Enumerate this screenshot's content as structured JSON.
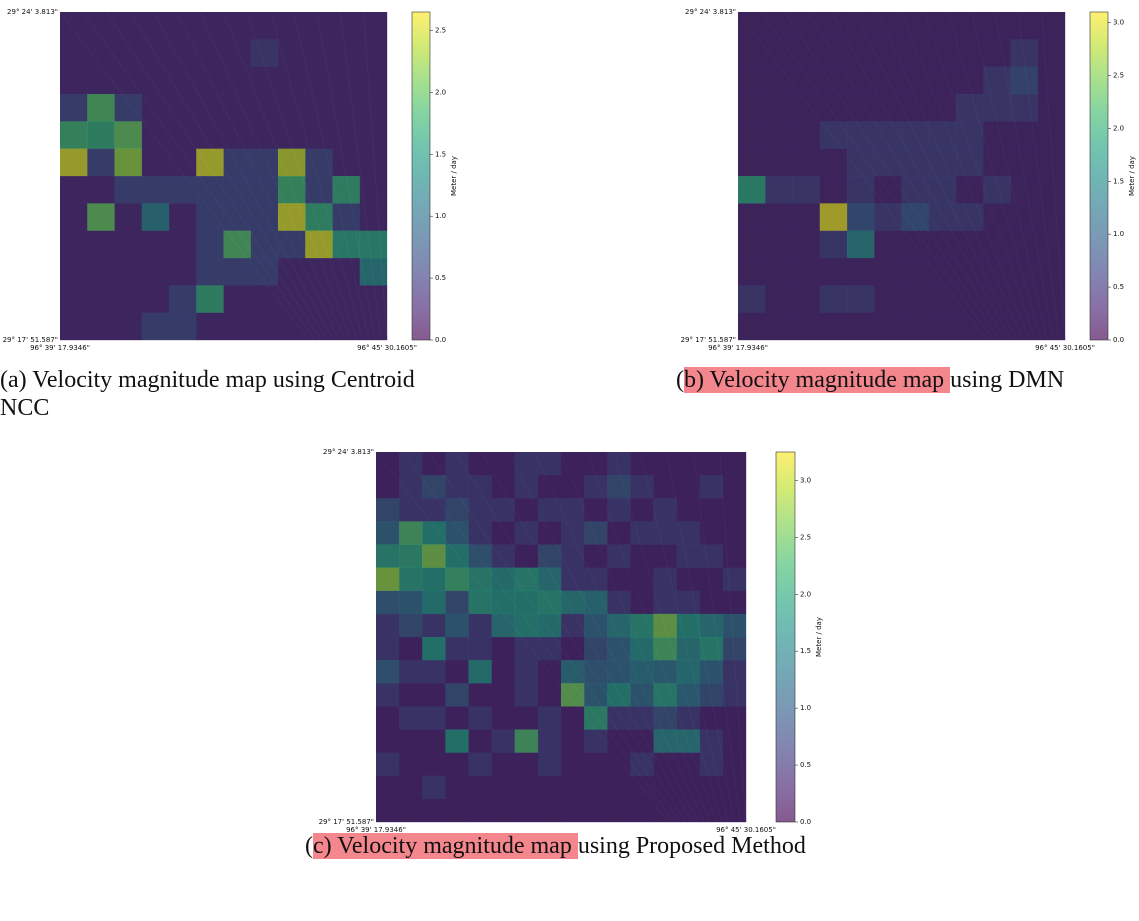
{
  "figures": [
    {
      "corner_labels": {
        "top_left": "29° 24' 3.813\"",
        "bottom_left": "29° 17' 51.587\"",
        "x_left": "96° 39' 17.9346\"",
        "x_right": "96° 45' 30.1605\""
      },
      "colormap": "viridis",
      "colorbar": {
        "label": "Meter / day",
        "lim": [
          0,
          2.65
        ],
        "ticks": [
          {
            "value": 0,
            "label": "0.0"
          },
          {
            "value": 0.5,
            "label": "0.5"
          },
          {
            "value": 1,
            "label": "1.0"
          },
          {
            "value": 1.5,
            "label": "1.5"
          },
          {
            "value": 2,
            "label": "2.0"
          },
          {
            "value": 2.5,
            "label": "2.5"
          }
        ]
      },
      "grid": [
        [
          0.3,
          0.3,
          0.3,
          0.3,
          0.3,
          0.3,
          0.3,
          0.3,
          0.3,
          0.3,
          0.3,
          0.3
        ],
        [
          0.3,
          0.3,
          0.3,
          0.3,
          0.3,
          0.3,
          0.3,
          0.5,
          0.3,
          0.3,
          0.3,
          0.3
        ],
        [
          0.3,
          0.3,
          0.3,
          0.3,
          0.3,
          0.3,
          0.3,
          0.3,
          0.3,
          0.3,
          0.3,
          0.3
        ],
        [
          0.6,
          1.9,
          0.6,
          0.3,
          0.3,
          0.3,
          0.3,
          0.3,
          0.3,
          0.3,
          0.3,
          0.3
        ],
        [
          1.8,
          1.7,
          2.0,
          0.3,
          0.3,
          0.3,
          0.3,
          0.3,
          0.3,
          0.3,
          0.3,
          0.3
        ],
        [
          2.5,
          0.6,
          2.2,
          0.3,
          0.3,
          2.5,
          0.6,
          0.6,
          2.4,
          0.6,
          0.3,
          0.3
        ],
        [
          0.3,
          0.3,
          0.6,
          0.6,
          0.6,
          0.6,
          0.6,
          0.6,
          1.8,
          0.6,
          1.7,
          0.3
        ],
        [
          0.3,
          2.0,
          0.3,
          1.2,
          0.3,
          0.6,
          0.6,
          0.6,
          2.5,
          1.7,
          0.6,
          0.3
        ],
        [
          0.3,
          0.3,
          0.3,
          0.3,
          0.3,
          0.6,
          1.9,
          0.6,
          0.6,
          2.5,
          1.6,
          1.6
        ],
        [
          0.3,
          0.3,
          0.3,
          0.3,
          0.3,
          0.6,
          0.6,
          0.6,
          0.3,
          0.3,
          0.3,
          1.3
        ],
        [
          0.3,
          0.3,
          0.3,
          0.3,
          0.6,
          1.7,
          0.3,
          0.3,
          0.3,
          0.3,
          0.3,
          0.3
        ],
        [
          0.3,
          0.3,
          0.3,
          0.6,
          0.6,
          0.3,
          0.3,
          0.3,
          0.3,
          0.3,
          0.3,
          0.3
        ]
      ],
      "caption": {
        "parts": [
          "(a) Velocity magnitude map using Centroid NCC"
        ],
        "highlight": null
      }
    },
    {
      "corner_labels": {
        "top_left": "29° 24' 3.813\"",
        "bottom_left": "29° 17' 51.587\"",
        "x_left": "96° 39' 17.9346\"",
        "x_right": "96° 45' 30.1605\""
      },
      "colormap": "viridis",
      "colorbar": {
        "label": "Meter / day",
        "lim": [
          0,
          3.1
        ],
        "ticks": [
          {
            "value": 0,
            "label": "0.0"
          },
          {
            "value": 0.5,
            "label": "0.5"
          },
          {
            "value": 1,
            "label": "1.0"
          },
          {
            "value": 1.5,
            "label": "1.5"
          },
          {
            "value": 2,
            "label": "2.0"
          },
          {
            "value": 2.5,
            "label": "2.5"
          },
          {
            "value": 3,
            "label": "3.0"
          }
        ]
      },
      "grid": [
        [
          0.3,
          0.3,
          0.3,
          0.3,
          0.3,
          0.3,
          0.3,
          0.3,
          0.3,
          0.3,
          0.3,
          0.3
        ],
        [
          0.3,
          0.3,
          0.3,
          0.3,
          0.3,
          0.3,
          0.3,
          0.3,
          0.3,
          0.3,
          0.6,
          0.3
        ],
        [
          0.3,
          0.3,
          0.3,
          0.3,
          0.3,
          0.3,
          0.3,
          0.3,
          0.3,
          0.6,
          0.8,
          0.3
        ],
        [
          0.3,
          0.3,
          0.3,
          0.3,
          0.3,
          0.3,
          0.3,
          0.3,
          0.6,
          0.6,
          0.6,
          0.3
        ],
        [
          0.3,
          0.3,
          0.3,
          0.6,
          0.6,
          0.6,
          0.6,
          0.6,
          0.6,
          0.3,
          0.3,
          0.3
        ],
        [
          0.3,
          0.3,
          0.3,
          0.3,
          0.6,
          0.6,
          0.6,
          0.6,
          0.6,
          0.3,
          0.3,
          0.3
        ],
        [
          1.9,
          0.6,
          0.6,
          0.3,
          0.6,
          0.3,
          0.6,
          0.6,
          0.3,
          0.6,
          0.3,
          0.3
        ],
        [
          0.3,
          0.3,
          0.3,
          3.0,
          0.9,
          0.6,
          0.9,
          0.6,
          0.6,
          0.3,
          0.3,
          0.3
        ],
        [
          0.3,
          0.3,
          0.3,
          0.6,
          1.5,
          0.3,
          0.3,
          0.3,
          0.3,
          0.3,
          0.3,
          0.3
        ],
        [
          0.3,
          0.3,
          0.3,
          0.3,
          0.3,
          0.3,
          0.3,
          0.3,
          0.3,
          0.3,
          0.3,
          0.3
        ],
        [
          0.6,
          0.3,
          0.3,
          0.6,
          0.6,
          0.3,
          0.3,
          0.3,
          0.3,
          0.3,
          0.3,
          0.3
        ],
        [
          0.3,
          0.3,
          0.3,
          0.3,
          0.3,
          0.3,
          0.3,
          0.3,
          0.3,
          0.3,
          0.3,
          0.3
        ]
      ],
      "caption": {
        "parts": [
          "(",
          "b) Velocity magnitude map ",
          "using DMN"
        ],
        "highlight": 1
      }
    },
    {
      "corner_labels": {
        "top_left": "29° 24' 3.813\"",
        "bottom_left": "29° 17' 51.587\"",
        "x_left": "96° 39' 17.9346\"",
        "x_right": "96° 45' 30.1605\""
      },
      "colormap": "viridis",
      "colorbar": {
        "label": "Meter / day",
        "lim": [
          0,
          3.25
        ],
        "ticks": [
          {
            "value": 0,
            "label": "0.0"
          },
          {
            "value": 0.5,
            "label": "0.5"
          },
          {
            "value": 1,
            "label": "1.0"
          },
          {
            "value": 1.5,
            "label": "1.5"
          },
          {
            "value": 2,
            "label": "2.0"
          },
          {
            "value": 2.5,
            "label": "2.5"
          },
          {
            "value": 3,
            "label": "3.0"
          }
        ]
      },
      "grid": [
        [
          0.3,
          0.6,
          0.3,
          0.6,
          0.3,
          0.3,
          0.6,
          0.6,
          0.3,
          0.3,
          0.6,
          0.3,
          0.3,
          0.3,
          0.3,
          0.3
        ],
        [
          0.3,
          0.6,
          0.9,
          0.6,
          0.6,
          0.3,
          0.6,
          0.3,
          0.3,
          0.6,
          0.9,
          0.6,
          0.3,
          0.3,
          0.6,
          0.3
        ],
        [
          0.9,
          0.6,
          0.6,
          0.9,
          0.6,
          0.6,
          0.3,
          0.6,
          0.6,
          0.3,
          0.6,
          0.3,
          0.6,
          0.3,
          0.3,
          0.3
        ],
        [
          1.2,
          2.3,
          1.8,
          1.2,
          0.6,
          0.3,
          0.6,
          0.3,
          0.6,
          0.9,
          0.3,
          0.6,
          0.6,
          0.6,
          0.3,
          0.3
        ],
        [
          1.9,
          2.0,
          2.6,
          1.8,
          1.1,
          0.6,
          0.3,
          0.9,
          0.6,
          0.3,
          0.6,
          0.3,
          0.3,
          0.6,
          0.6,
          0.3
        ],
        [
          2.7,
          1.9,
          1.8,
          2.2,
          1.9,
          1.7,
          1.9,
          1.6,
          0.6,
          0.6,
          0.3,
          0.3,
          0.6,
          0.3,
          0.3,
          0.6
        ],
        [
          1.1,
          1.2,
          1.7,
          0.9,
          1.9,
          1.8,
          1.8,
          1.9,
          1.6,
          1.5,
          0.6,
          0.3,
          0.6,
          0.6,
          0.3,
          0.3
        ],
        [
          0.6,
          0.9,
          0.6,
          1.2,
          0.6,
          1.6,
          1.8,
          1.7,
          0.6,
          1.2,
          1.6,
          1.9,
          2.6,
          1.8,
          1.6,
          1.2
        ],
        [
          0.6,
          0.3,
          1.8,
          0.6,
          0.6,
          0.3,
          0.6,
          0.6,
          0.3,
          0.9,
          1.2,
          1.7,
          2.3,
          1.6,
          1.9,
          0.9
        ],
        [
          1.1,
          0.6,
          0.6,
          0.3,
          1.7,
          0.3,
          0.6,
          0.3,
          1.4,
          1.1,
          1.2,
          1.4,
          1.3,
          1.6,
          1.2,
          0.6
        ],
        [
          0.6,
          0.3,
          0.3,
          0.9,
          0.3,
          0.3,
          0.6,
          0.3,
          2.5,
          1.2,
          1.8,
          1.2,
          1.9,
          1.3,
          0.9,
          0.6
        ],
        [
          0.3,
          0.6,
          0.6,
          0.3,
          0.6,
          0.3,
          0.3,
          0.6,
          0.3,
          2.0,
          0.6,
          0.6,
          0.9,
          0.6,
          0.3,
          0.3
        ],
        [
          0.3,
          0.3,
          0.3,
          1.8,
          0.3,
          0.6,
          2.3,
          0.6,
          0.3,
          0.6,
          0.3,
          0.3,
          1.6,
          1.6,
          0.6,
          0.3
        ],
        [
          0.6,
          0.3,
          0.3,
          0.3,
          0.6,
          0.3,
          0.3,
          0.6,
          0.3,
          0.3,
          0.3,
          0.6,
          0.3,
          0.3,
          0.6,
          0.3
        ],
        [
          0.3,
          0.3,
          0.6,
          0.3,
          0.3,
          0.3,
          0.3,
          0.3,
          0.3,
          0.3,
          0.3,
          0.3,
          0.3,
          0.3,
          0.3,
          0.3
        ],
        [
          0.3,
          0.3,
          0.3,
          0.3,
          0.3,
          0.3,
          0.3,
          0.3,
          0.3,
          0.3,
          0.3,
          0.3,
          0.3,
          0.3,
          0.3,
          0.3
        ]
      ],
      "caption": {
        "parts": [
          "(",
          "c) Velocity magnitude map ",
          "using Proposed Method"
        ],
        "highlight": 1
      }
    }
  ]
}
